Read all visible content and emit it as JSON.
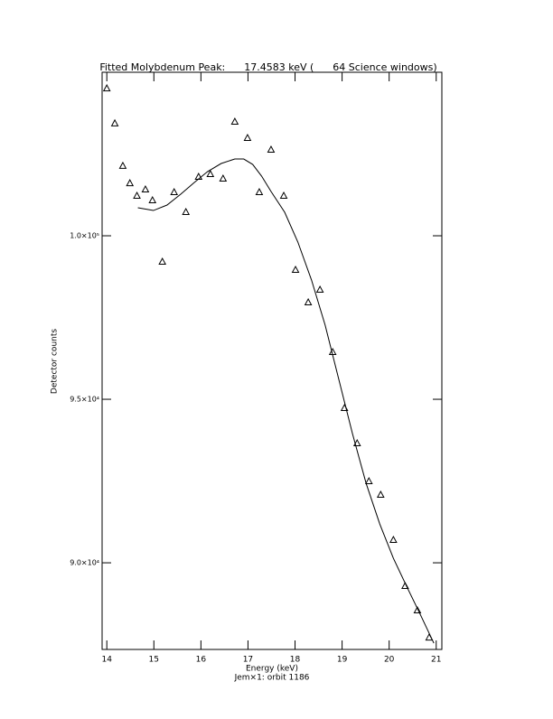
{
  "chart_data": {
    "type": "scatter",
    "title": "Fitted Molybdenum Peak:      17.4583 keV (      64 Science windows)",
    "x_label": "Energy (keV)",
    "y_label": "Detector counts",
    "subtitle": "Jem×1: orbit 1186",
    "color": "#000000",
    "xlim": [
      13.9,
      21.12
    ],
    "ylim": [
      87350,
      105000
    ],
    "xticks": [
      14,
      15,
      16,
      17,
      18,
      19,
      20,
      21
    ],
    "yticks": [
      {
        "value": 90000,
        "label": "9.0×10⁴"
      },
      {
        "value": 95000,
        "label": "9.5×10⁴"
      },
      {
        "value": 100000,
        "label": "1.0×10⁵"
      }
    ],
    "points": {
      "x": [
        14.0,
        14.17,
        14.34,
        14.49,
        14.64,
        14.82,
        14.97,
        15.18,
        15.43,
        15.68,
        15.95,
        16.2,
        16.47,
        16.72,
        16.99,
        17.24,
        17.49,
        17.76,
        18.01,
        18.28,
        18.53,
        18.8,
        19.05,
        19.32,
        19.57,
        19.82,
        20.09,
        20.34,
        20.6,
        20.85
      ],
      "y": [
        104500,
        103430,
        102130,
        101600,
        101215,
        101409,
        101077,
        99199,
        101326,
        100718,
        101796,
        101878,
        101740,
        103481,
        102983,
        101326,
        102624,
        101215,
        98950,
        97956,
        98343,
        96436,
        94724,
        93646,
        92486,
        92072,
        90691,
        89282,
        88536,
        87707
      ]
    },
    "fit": {
      "x": [
        14.66,
        14.99,
        15.28,
        15.57,
        15.86,
        16.14,
        16.43,
        16.72,
        16.91,
        17.1,
        17.29,
        17.49,
        17.78,
        18.06,
        18.35,
        18.64,
        18.93,
        19.22,
        19.51,
        19.8,
        20.09,
        20.38,
        20.66,
        20.95
      ],
      "y": [
        100856,
        100773,
        100939,
        101271,
        101630,
        101961,
        102210,
        102348,
        102348,
        102182,
        101823,
        101354,
        100718,
        99807,
        98646,
        97265,
        95608,
        93950,
        92431,
        91188,
        90138,
        89254,
        88425,
        87541
      ]
    }
  }
}
